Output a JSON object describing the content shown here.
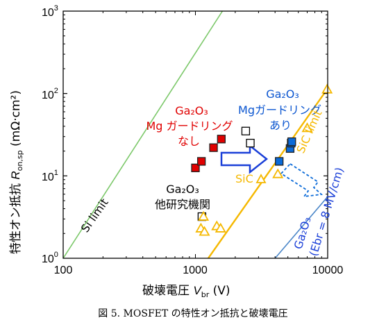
{
  "caption": "図 5. MOSFET の特性オン抵抗と破壊電圧",
  "chart_data": {
    "type": "scatter",
    "xscale": "log",
    "yscale": "log",
    "xlim": [
      100,
      10000
    ],
    "ylim": [
      1,
      1000
    ],
    "xticks": [
      "100",
      "1000",
      "10000"
    ],
    "yticks": [
      {
        "base": "10",
        "exp": "0"
      },
      {
        "base": "10",
        "exp": "1"
      },
      {
        "base": "10",
        "exp": "2"
      },
      {
        "base": "10",
        "exp": "3"
      }
    ],
    "xlabel": {
      "text": "破壊電圧 ",
      "sym": "V",
      "sub": "br",
      "unit": " (V)"
    },
    "ylabel": {
      "text": "特性オン抵抗 ",
      "sym": "R",
      "sub": "on,sp",
      "unit": " (mΩ·cm²)"
    },
    "grid": false,
    "limit_lines": [
      {
        "label": "Si limit",
        "color": "#7cc86a",
        "points": [
          [
            100,
            1
          ],
          [
            1600,
            1000
          ]
        ]
      },
      {
        "label": "SiC limit",
        "color": "#f5b800",
        "points": [
          [
            1250,
            1
          ],
          [
            10000,
            115
          ]
        ]
      },
      {
        "label_line1": "Ga2O3",
        "label_line2": "(Ebr = 8 MV/cm)",
        "color": "#4a86c8",
        "points": [
          [
            4000,
            1
          ],
          [
            10000,
            5.6
          ]
        ]
      }
    ],
    "series": [
      {
        "name": "Ga2O3 Mg ガードリング なし",
        "marker": "square",
        "fill": "#e00000",
        "stroke": "#e00000",
        "points": [
          [
            1000,
            12.5
          ],
          [
            1110,
            15
          ],
          [
            1370,
            22
          ],
          [
            1570,
            28
          ]
        ]
      },
      {
        "name": "Ga2O3 Mgガードリング あり",
        "marker": "square",
        "fill": "#0a6ad8",
        "stroke": "#0a6ad8",
        "points": [
          [
            4300,
            15
          ],
          [
            5200,
            21.5
          ],
          [
            5300,
            25
          ],
          [
            5350,
            26
          ]
        ]
      },
      {
        "name": "Ga2O3 他研究機関",
        "marker": "square",
        "fill": "#ffffff",
        "stroke": "#000000",
        "points": [
          [
            1120,
            3.2
          ],
          [
            2400,
            35
          ],
          [
            2600,
            25
          ]
        ]
      },
      {
        "name": "SiC",
        "marker": "triangle",
        "fill": "#ffffff",
        "stroke": "#f5b800",
        "points": [
          [
            1100,
            2.3
          ],
          [
            1150,
            3.2
          ],
          [
            1170,
            2.1
          ],
          [
            1450,
            2.45
          ],
          [
            1550,
            2.3
          ],
          [
            4200,
            10.5
          ],
          [
            7000,
            38
          ],
          [
            9900,
            112
          ]
        ]
      }
    ],
    "annotations": {
      "red_l1": "Ga₂O₃",
      "red_l2": "Mg ガードリング",
      "red_l3": "なし",
      "blue_l1": "Ga₂O₃",
      "blue_l2": "Mgガードリング",
      "blue_l3": "あり",
      "black_l1": "Ga₂O₃",
      "black_l2": "他研究機関",
      "sic_point_label": "SiC",
      "si_limit": "Si limit",
      "sic_limit": "SiC limit",
      "ga_limit_l1": "Ga₂O₃",
      "ga_limit_l2": "(Ebr = 8 MV/cm)"
    }
  }
}
